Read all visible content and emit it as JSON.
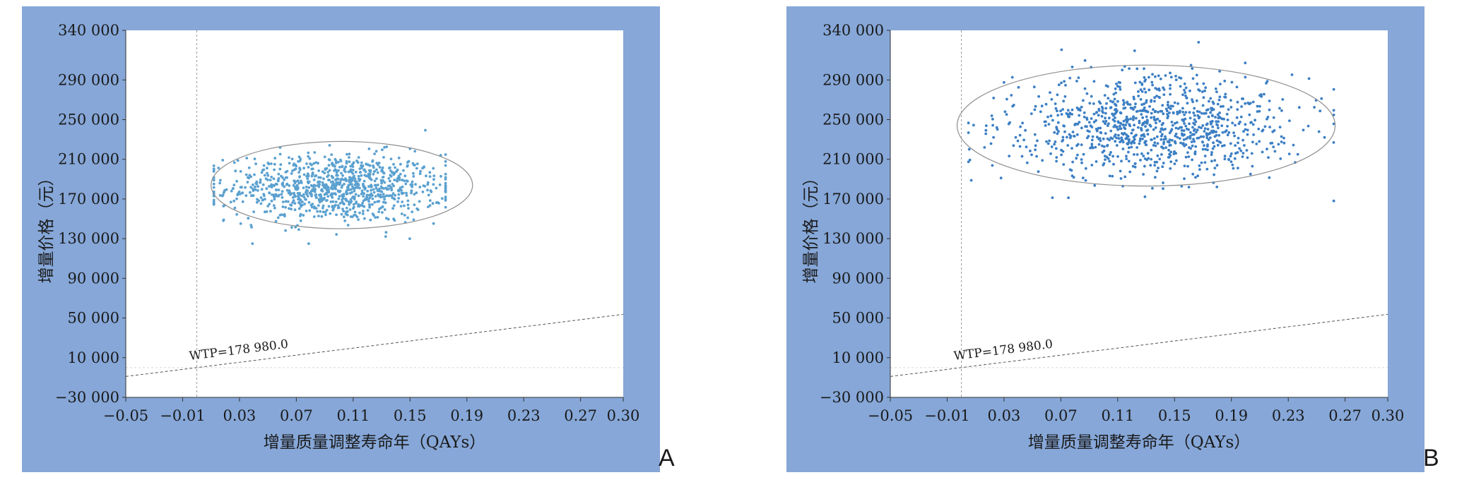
{
  "chart_data": [
    {
      "type": "scatter",
      "panel_label": "A",
      "xlabel": "增量质量调整寿命年（QAYs）",
      "ylabel": "增量价格（元）",
      "xlim": [
        -0.05,
        0.3
      ],
      "ylim": [
        -30000,
        340000
      ],
      "x_ticks": [
        "−0.05",
        "−0.01",
        "0.03",
        "0.07",
        "0.11",
        "0.15",
        "0.19",
        "0.23",
        "0.27",
        "0.30"
      ],
      "y_ticks": [
        "−30 000",
        "10 000",
        "50 000",
        "90 000",
        "130 000",
        "170 000",
        "210 000",
        "250 000",
        "290 000",
        "340 000"
      ],
      "point_color": "#5ba1d0",
      "cloud": {
        "center_x": 0.098,
        "center_y": 181000,
        "spread_x": 0.038,
        "spread_y": 17000,
        "x_range": [
          0.012,
          0.175
        ],
        "y_range": [
          125000,
          243000
        ],
        "count": 1000
      },
      "ellipse": {
        "center_x": 0.102,
        "center_y": 184000,
        "half_width": 0.092,
        "half_height": 44000
      },
      "wtp_line": {
        "label": "WTP=178 980.0",
        "slope": 178980.0
      },
      "x_zero": 0,
      "y_zero": 0
    },
    {
      "type": "scatter",
      "panel_label": "B",
      "xlabel": "增量质量调整寿命年（QAYs）",
      "ylabel": "增量价格（元）",
      "xlim": [
        -0.05,
        0.3
      ],
      "ylim": [
        -30000,
        340000
      ],
      "x_ticks": [
        "−0.05",
        "−0.01",
        "0.03",
        "0.07",
        "0.11",
        "0.15",
        "0.19",
        "0.23",
        "0.27",
        "0.30"
      ],
      "y_ticks": [
        "−30 000",
        "10 000",
        "50 000",
        "90 000",
        "130 000",
        "170 000",
        "210 000",
        "250 000",
        "290 000",
        "340 000"
      ],
      "point_color": "#3c7fc4",
      "cloud": {
        "center_x": 0.135,
        "center_y": 243000,
        "spread_x": 0.05,
        "spread_y": 25000,
        "x_range": [
          0.005,
          0.262
        ],
        "y_range": [
          168000,
          328000
        ],
        "count": 1000
      },
      "ellipse": {
        "center_x": 0.13,
        "center_y": 244000,
        "half_width": 0.133,
        "half_height": 61000
      },
      "wtp_line": {
        "label": "WTP=178 980.0",
        "slope": 178980.0
      },
      "x_zero": 0,
      "y_zero": 0
    }
  ]
}
